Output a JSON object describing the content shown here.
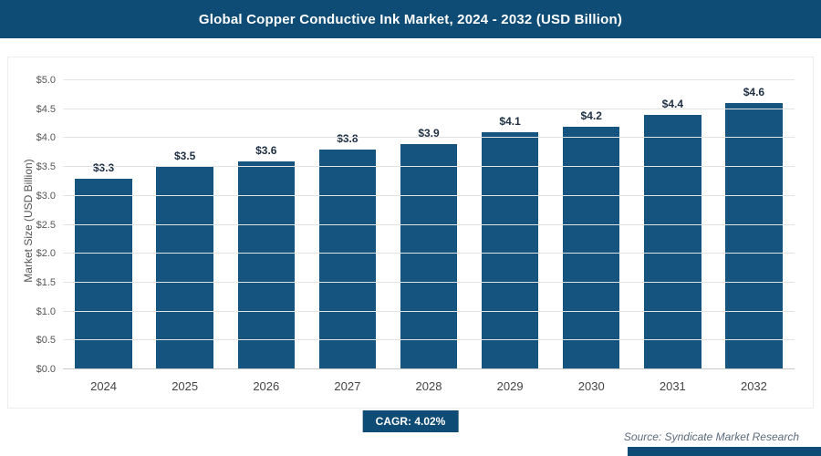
{
  "title": "Global Copper Conductive Ink Market, 2024 - 2032 (USD Billion)",
  "chart_data": {
    "type": "bar",
    "title": "Global Copper Conductive Ink Market, 2024 - 2032 (USD Billion)",
    "categories": [
      "2024",
      "2025",
      "2026",
      "2027",
      "2028",
      "2029",
      "2030",
      "2031",
      "2032"
    ],
    "values": [
      3.3,
      3.5,
      3.6,
      3.8,
      3.9,
      4.1,
      4.2,
      4.4,
      4.6
    ],
    "value_labels": [
      "$3.3",
      "$3.5",
      "$3.6",
      "$3.8",
      "$3.9",
      "$4.1",
      "$4.2",
      "$4.4",
      "$4.6"
    ],
    "xlabel": "",
    "ylabel": "Market Size (USD Billion)",
    "ylim": [
      0,
      5
    ],
    "ytick_step": 0.5,
    "ytick_labels": [
      "$0.0",
      "$0.5",
      "$1.0",
      "$1.5",
      "$2.0",
      "$2.5",
      "$3.0",
      "$3.5",
      "$4.0",
      "$4.5",
      "$5.0"
    ],
    "grid": true,
    "legend": "none",
    "bar_color": "#14547e"
  },
  "footer": {
    "cagr_label": "CAGR: 4.02%",
    "source": "Source: Syndicate Market Research"
  },
  "colors": {
    "header_bg": "#0f4c75",
    "bar": "#14547e",
    "accent_strip": "#0f4c75",
    "gridline": "#e3e3e3",
    "value_label": "#1f3044",
    "tick_label": "#555555"
  }
}
